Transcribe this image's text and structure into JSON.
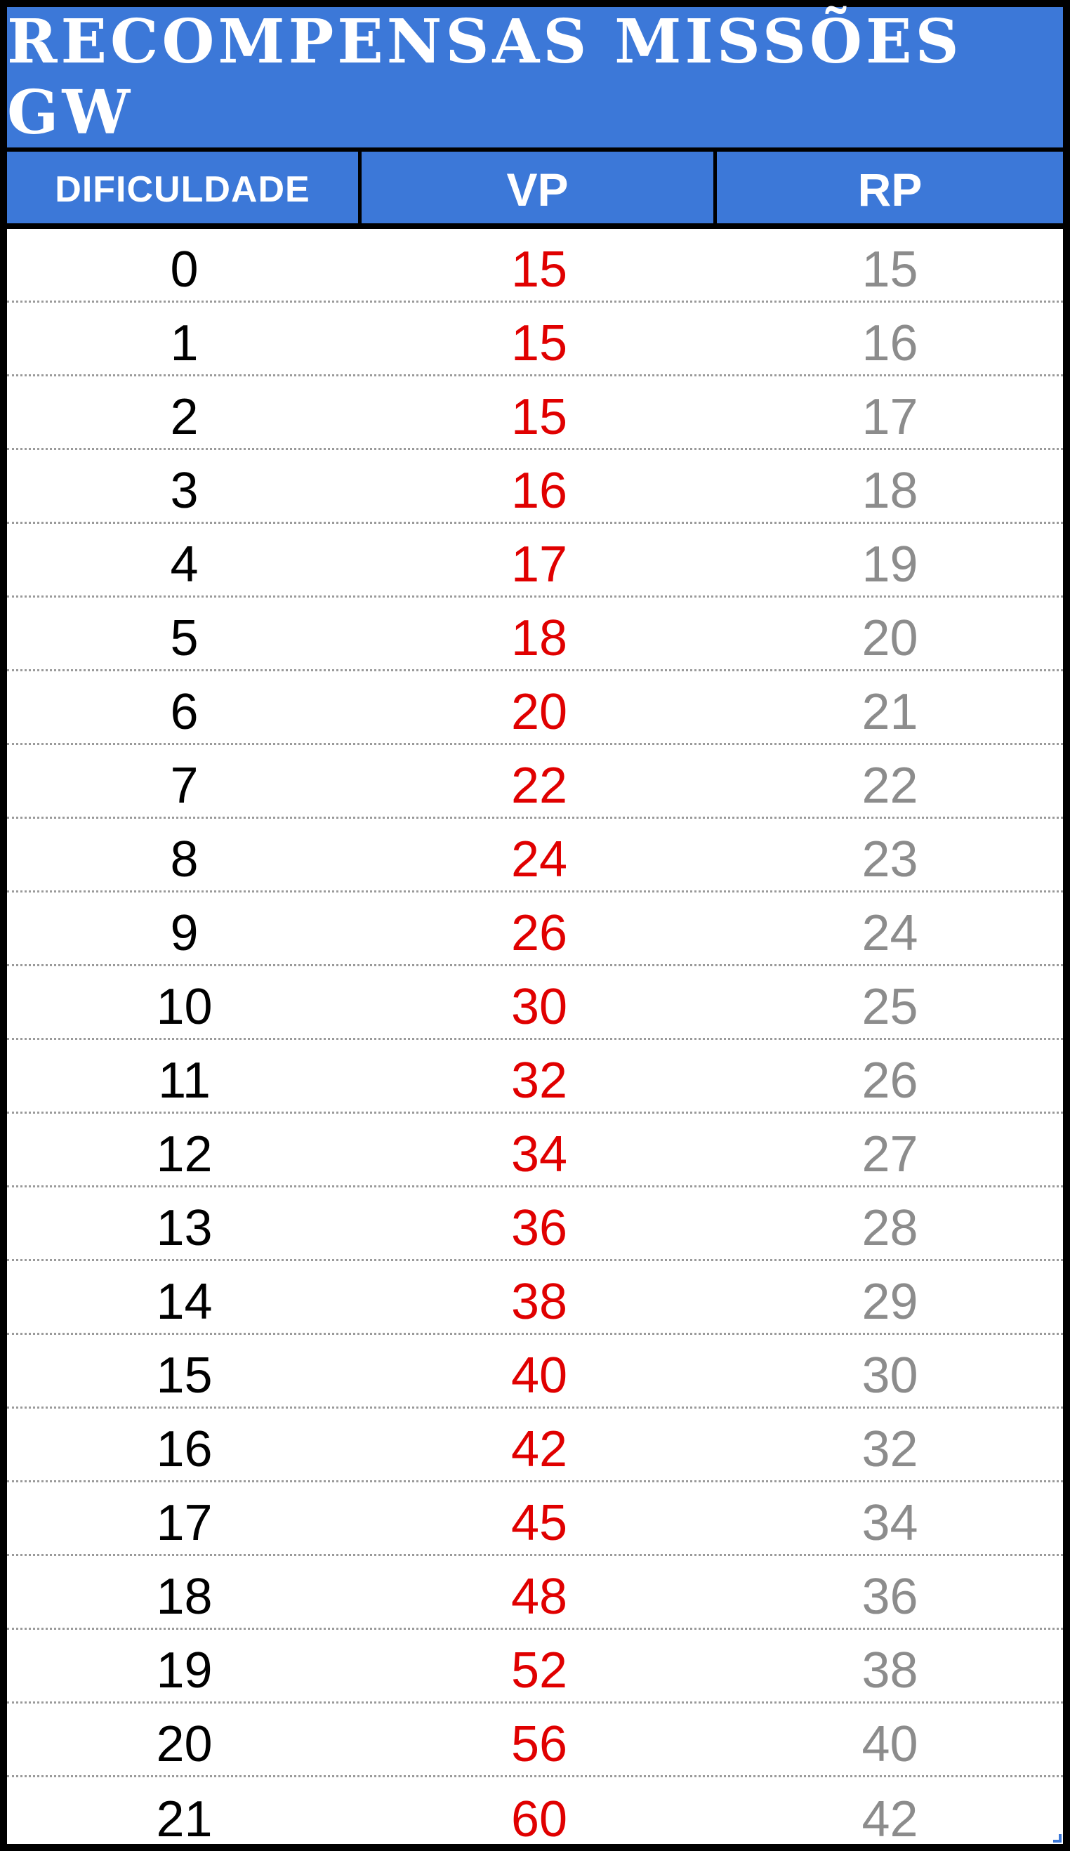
{
  "title": "RECOMPENSAS MISSÕES GW",
  "headers": {
    "difficulty": "DIFICULDADE",
    "vp": "VP",
    "rp": "RP"
  },
  "colors": {
    "header_bg": "#3c78d8",
    "vp_text": "#e00000",
    "rp_text": "#8c8c8c"
  },
  "rows": [
    {
      "d": "0",
      "vp": "15",
      "rp": "15"
    },
    {
      "d": "1",
      "vp": "15",
      "rp": "16"
    },
    {
      "d": "2",
      "vp": "15",
      "rp": "17"
    },
    {
      "d": "3",
      "vp": "16",
      "rp": "18"
    },
    {
      "d": "4",
      "vp": "17",
      "rp": "19"
    },
    {
      "d": "5",
      "vp": "18",
      "rp": "20"
    },
    {
      "d": "6",
      "vp": "20",
      "rp": "21"
    },
    {
      "d": "7",
      "vp": "22",
      "rp": "22"
    },
    {
      "d": "8",
      "vp": "24",
      "rp": "23"
    },
    {
      "d": "9",
      "vp": "26",
      "rp": "24"
    },
    {
      "d": "10",
      "vp": "30",
      "rp": "25"
    },
    {
      "d": "11",
      "vp": "32",
      "rp": "26"
    },
    {
      "d": "12",
      "vp": "34",
      "rp": "27"
    },
    {
      "d": "13",
      "vp": "36",
      "rp": "28"
    },
    {
      "d": "14",
      "vp": "38",
      "rp": "29"
    },
    {
      "d": "15",
      "vp": "40",
      "rp": "30"
    },
    {
      "d": "16",
      "vp": "42",
      "rp": "32"
    },
    {
      "d": "17",
      "vp": "45",
      "rp": "34"
    },
    {
      "d": "18",
      "vp": "48",
      "rp": "36"
    },
    {
      "d": "19",
      "vp": "52",
      "rp": "38"
    },
    {
      "d": "20",
      "vp": "56",
      "rp": "40"
    },
    {
      "d": "21",
      "vp": "60",
      "rp": "42"
    }
  ]
}
